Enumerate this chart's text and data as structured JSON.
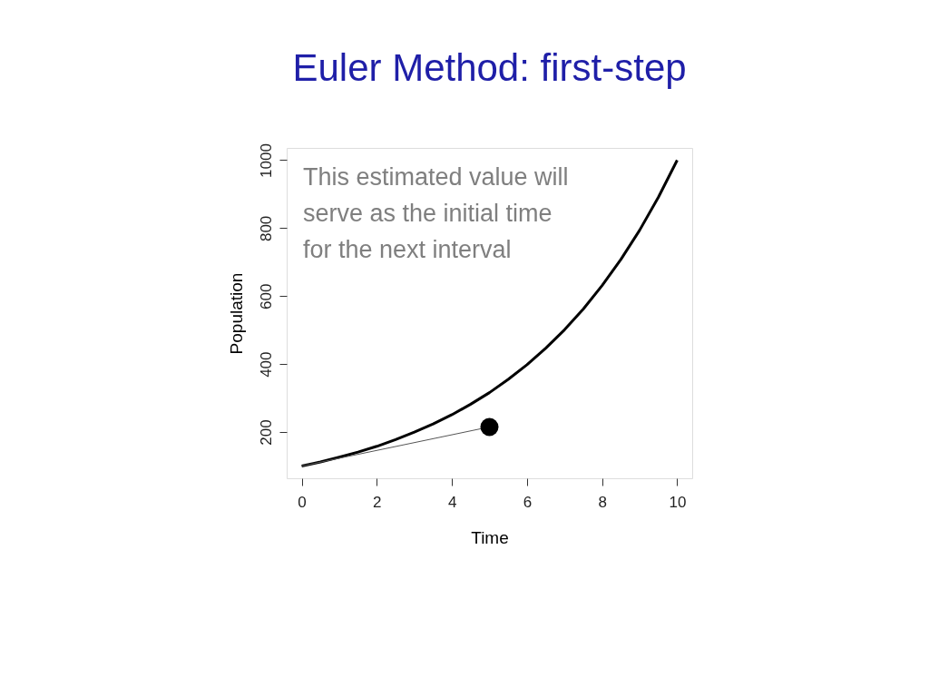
{
  "chart_data": {
    "type": "line",
    "title": "Euler Method: first-step",
    "xlabel": "Time",
    "ylabel": "Population",
    "annotations": [
      "This estimated value will\nserve as the initial time\nfor the next interval"
    ],
    "xlim": [
      -0.4,
      10.4
    ],
    "ylim": [
      64,
      1036
    ],
    "xticks": [
      0,
      2,
      4,
      6,
      8,
      10
    ],
    "yticks": [
      200,
      400,
      600,
      800,
      1000
    ],
    "grid": false,
    "series": [
      {
        "color": "#000000",
        "x": [
          0,
          0.5,
          1,
          1.5,
          2,
          2.5,
          3,
          3.5,
          4,
          4.5,
          5,
          5.5,
          6,
          6.5,
          7,
          7.5,
          8,
          8.5,
          9,
          9.5,
          10
        ],
        "values": [
          100,
          112,
          126,
          141,
          158,
          178,
          200,
          224,
          251,
          282,
          316,
          355,
          398,
          447,
          501,
          562,
          631,
          708,
          794,
          891,
          1000
        ]
      },
      {
        "color": "#555555",
        "x": [
          0,
          5
        ],
        "values": [
          100,
          215
        ]
      },
      {
        "type": "scatter",
        "color": "#000000",
        "marker": "circle",
        "x": [
          5
        ],
        "values": [
          215
        ]
      }
    ]
  }
}
